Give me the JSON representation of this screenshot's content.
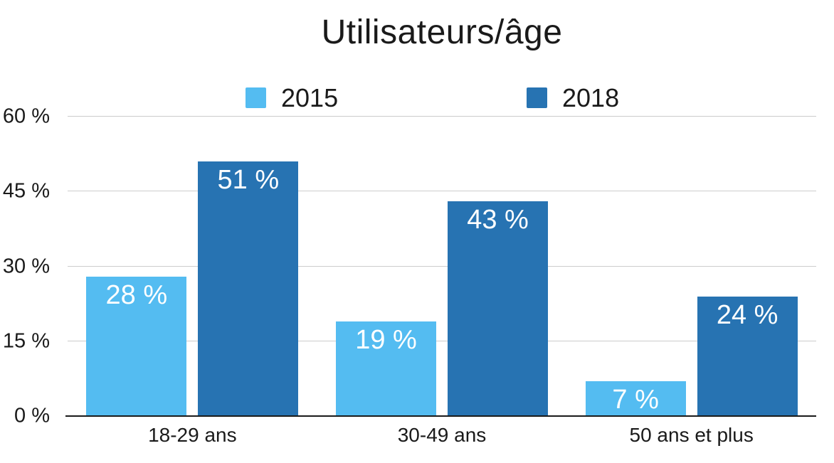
{
  "chart_data": {
    "type": "bar",
    "title": "Utilisateurs/âge",
    "categories": [
      "18-29 ans",
      "30-49 ans",
      "50 ans et plus"
    ],
    "series": [
      {
        "name": "2015",
        "color": "#54BCF1",
        "values": [
          28,
          19,
          7
        ],
        "data_labels": [
          "28 %",
          "19 %",
          "7 %"
        ]
      },
      {
        "name": "2018",
        "color": "#2773B2",
        "values": [
          51,
          43,
          24
        ],
        "data_labels": [
          "51 %",
          "43 %",
          "24 %"
        ]
      }
    ],
    "xlabel": "",
    "ylabel": "",
    "ylim": [
      0,
      60
    ],
    "yticks": [
      0,
      15,
      30,
      45,
      60
    ],
    "ytick_labels": [
      "0 %",
      "15 %",
      "30 %",
      "45 %",
      "60 %"
    ],
    "grid": true,
    "legend_position": "top",
    "colors": {
      "grid_line": "#cccccc",
      "axis_line": "#1a1a1a",
      "text": "#1a1a1a",
      "bar_label": "#ffffff",
      "background": "#ffffff"
    }
  }
}
